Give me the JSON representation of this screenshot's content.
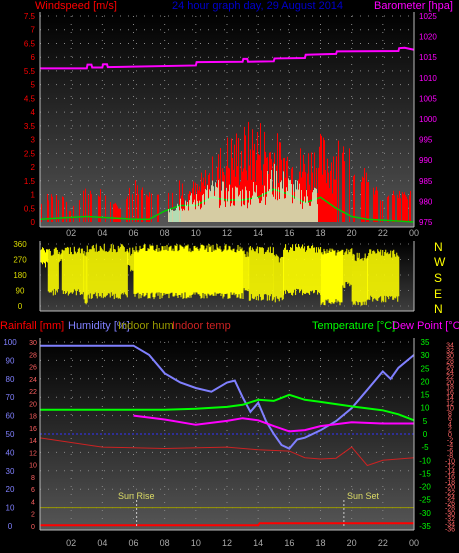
{
  "header": {
    "left_label": "Windspeed [m/s]",
    "center_title": "24 hour graph day, 29 August 2014",
    "right_label": "Barometer [hpa]"
  },
  "bottom_header": {
    "rainfall": "Rainfall [mm]",
    "humidity": "Humidity [%]",
    "indoor_hum": "Indoor hum",
    "indoor_temp": "Indoor temp",
    "temperature": "Temperature [°C]",
    "dew_point": "Dew Point [°C]"
  },
  "annotations": {
    "sunrise": "Sun Rise",
    "sunset": "Sun Set"
  },
  "compass": [
    "N",
    "W",
    "S",
    "E",
    "N"
  ],
  "colors": {
    "windspeed": "#ff0000",
    "gust": "#ff0000",
    "wind_avg": "#00cc00",
    "barometer": "#ff00ff",
    "direction": "#ffff00",
    "humidity": "#8080ff",
    "temperature": "#00ff00",
    "dew_point": "#ff00ff",
    "indoor_temp": "#cc2222",
    "indoor_hum": "#999900",
    "rainfall": "#ff0000",
    "title": "#0000cc"
  },
  "chart_data": [
    {
      "type": "bar",
      "name": "wind_barometer",
      "x_ticks": [
        "02",
        "04",
        "06",
        "08",
        "10",
        "12",
        "14",
        "16",
        "18",
        "20",
        "22",
        "00"
      ],
      "y_left_ticks": [
        "0",
        "0.5",
        "1",
        "1.5",
        "2",
        "2.5",
        "3",
        "3.5",
        "4",
        "4.5",
        "5",
        "5.5",
        "6",
        "6.5",
        "7",
        "7.5"
      ],
      "y_right_ticks": [
        "975",
        "980",
        "985",
        "990",
        "995",
        "1000",
        "1005",
        "1010",
        "1015",
        "1020",
        "1025"
      ],
      "ylim_left": [
        0,
        7.5
      ],
      "ylim_right": [
        975,
        1025
      ],
      "grid": true,
      "windspeed_peaks": [
        [
          0,
          0.8
        ],
        [
          1,
          1.1
        ],
        [
          2,
          0.4
        ],
        [
          3,
          1.2
        ],
        [
          4,
          1.0
        ],
        [
          5,
          0.5
        ],
        [
          6,
          1.3
        ],
        [
          7,
          1.0
        ],
        [
          8,
          0.9
        ],
        [
          9,
          1.6
        ],
        [
          10,
          1.4
        ],
        [
          11,
          2.2
        ],
        [
          12,
          3.0
        ],
        [
          13,
          3.3
        ],
        [
          14,
          3.6
        ],
        [
          15,
          3.1
        ],
        [
          16,
          2.7
        ],
        [
          17,
          2.6
        ],
        [
          18,
          3.0
        ],
        [
          19,
          2.9
        ],
        [
          20,
          2.1
        ],
        [
          21,
          1.6
        ],
        [
          22,
          0.7
        ],
        [
          23,
          1.1
        ],
        [
          24,
          0.9
        ]
      ],
      "wind_avg_peaks": [
        [
          0,
          0.1
        ],
        [
          3,
          0.2
        ],
        [
          6,
          0.1
        ],
        [
          7,
          0.1
        ],
        [
          8,
          0.4
        ],
        [
          9,
          0.6
        ],
        [
          10,
          0.6
        ],
        [
          11,
          0.9
        ],
        [
          12,
          0.8
        ],
        [
          13,
          0.8
        ],
        [
          14,
          0.9
        ],
        [
          15,
          1.2
        ],
        [
          16,
          1.0
        ],
        [
          17,
          0.7
        ],
        [
          18,
          0.9
        ],
        [
          19,
          0.5
        ],
        [
          20,
          0.2
        ],
        [
          21,
          0.1
        ],
        [
          24,
          0.0
        ]
      ],
      "barometer": [
        [
          0,
          1012.3
        ],
        [
          3,
          1012.3
        ],
        [
          3.05,
          1013.2
        ],
        [
          3.3,
          1013.2
        ],
        [
          3.35,
          1012.5
        ],
        [
          4.0,
          1012.5
        ],
        [
          4.05,
          1013.3
        ],
        [
          4.3,
          1013.3
        ],
        [
          4.35,
          1012.6
        ],
        [
          10.0,
          1013.0
        ],
        [
          10.05,
          1013.8
        ],
        [
          13.0,
          1013.9
        ],
        [
          13.05,
          1014.6
        ],
        [
          13.3,
          1014.6
        ],
        [
          13.35,
          1013.9
        ],
        [
          15.0,
          1014.0
        ],
        [
          15.05,
          1014.7
        ],
        [
          17.0,
          1014.8
        ],
        [
          17.05,
          1015.6
        ],
        [
          19.0,
          1015.8
        ],
        [
          19.05,
          1016.4
        ],
        [
          23.0,
          1016.5
        ],
        [
          23.05,
          1017.2
        ],
        [
          23.4,
          1017.3
        ],
        [
          24,
          1016.8
        ]
      ]
    },
    {
      "type": "bar",
      "name": "wind_direction",
      "y_ticks": [
        "0",
        "90",
        "180",
        "270",
        "360"
      ],
      "ylim": [
        0,
        360
      ],
      "direction_bands": [
        [
          0,
          0.5,
          220,
          350
        ],
        [
          0.5,
          1.2,
          60,
          340
        ],
        [
          1.2,
          1.4,
          250,
          330
        ],
        [
          1.4,
          2.8,
          60,
          350
        ],
        [
          2.8,
          3.0,
          0,
          320
        ],
        [
          3.0,
          5.6,
          40,
          360
        ],
        [
          5.6,
          6.0,
          200,
          340
        ],
        [
          6.0,
          13.0,
          40,
          360
        ],
        [
          13.0,
          13.4,
          80,
          330
        ],
        [
          13.4,
          15.0,
          30,
          350
        ],
        [
          15.0,
          15.6,
          20,
          300
        ],
        [
          15.6,
          18.0,
          60,
          360
        ],
        [
          18.0,
          19.4,
          0,
          340
        ],
        [
          19.4,
          20.0,
          100,
          340
        ],
        [
          20.0,
          21.0,
          0,
          310
        ],
        [
          21.0,
          23.0,
          20,
          330
        ]
      ]
    },
    {
      "type": "line",
      "name": "temperature_humidity",
      "x_ticks": [
        "02",
        "04",
        "06",
        "08",
        "10",
        "12",
        "14",
        "16",
        "18",
        "20",
        "22",
        "00"
      ],
      "y_humidity_ticks": [
        "0",
        "10",
        "20",
        "30",
        "40",
        "50",
        "60",
        "70",
        "80",
        "90",
        "100"
      ],
      "y_rain_ticks": [
        "0",
        "2",
        "4",
        "6",
        "8",
        "10",
        "12",
        "14",
        "16",
        "18",
        "20",
        "22",
        "24",
        "26",
        "28",
        "30"
      ],
      "y_temp_ticks": [
        "-35",
        "-30",
        "-25",
        "-20",
        "-15",
        "-10",
        "-5",
        "0",
        "5",
        "10",
        "15",
        "20",
        "25",
        "30",
        "35"
      ],
      "y_dew_ticks": [
        "-36",
        "-34",
        "-32",
        "-30",
        "-28",
        "-26",
        "-24",
        "-22",
        "-20",
        "-18",
        "-16",
        "-14",
        "-12",
        "-10",
        "-8",
        "-6",
        "-4",
        "-2",
        "0",
        "2",
        "4",
        "6",
        "8",
        "10",
        "12",
        "14",
        "16",
        "18",
        "20",
        "22",
        "24",
        "26",
        "28",
        "30",
        "32",
        "34"
      ],
      "ylim_humidity": [
        0,
        100
      ],
      "ylim_temp": [
        -35,
        35
      ],
      "grid": true,
      "humidity": [
        [
          0,
          98
        ],
        [
          6,
          98
        ],
        [
          7,
          93
        ],
        [
          8,
          83
        ],
        [
          9,
          78
        ],
        [
          10,
          75
        ],
        [
          11,
          73
        ],
        [
          12,
          78
        ],
        [
          12.5,
          79
        ],
        [
          13,
          70
        ],
        [
          13.5,
          62
        ],
        [
          14,
          67
        ],
        [
          14.5,
          57
        ],
        [
          15,
          50
        ],
        [
          15.5,
          44
        ],
        [
          16,
          42
        ],
        [
          16.5,
          47
        ],
        [
          17,
          48
        ],
        [
          18,
          52
        ],
        [
          19,
          57
        ],
        [
          20,
          64
        ],
        [
          21,
          74
        ],
        [
          22,
          84
        ],
        [
          22.5,
          80
        ],
        [
          23,
          86
        ],
        [
          24,
          93
        ]
      ],
      "temperature": [
        [
          0,
          9.2
        ],
        [
          6,
          9.2
        ],
        [
          8,
          9.2
        ],
        [
          10,
          9.6
        ],
        [
          12,
          10.3
        ],
        [
          13,
          11.1
        ],
        [
          14,
          13.0
        ],
        [
          15,
          12.6
        ],
        [
          16,
          14.9
        ],
        [
          17,
          13.0
        ],
        [
          18,
          12.2
        ],
        [
          20,
          10.5
        ],
        [
          22,
          9.0
        ],
        [
          23,
          7.5
        ],
        [
          24,
          5.2
        ]
      ],
      "dew_point": [
        [
          6,
          7.0
        ],
        [
          8,
          5.5
        ],
        [
          10,
          3.5
        ],
        [
          12,
          5.0
        ],
        [
          13,
          6.0
        ],
        [
          14,
          5.2
        ],
        [
          15,
          3.0
        ],
        [
          16,
          1.0
        ],
        [
          17,
          1.5
        ],
        [
          18,
          3.0
        ],
        [
          20,
          4.5
        ],
        [
          22,
          4.0
        ],
        [
          24,
          4.0
        ]
      ],
      "indoor_temp": [
        [
          0,
          -1.5
        ],
        [
          4,
          -5.0
        ],
        [
          8,
          -5.5
        ],
        [
          12,
          -5.0
        ],
        [
          14,
          -6.0
        ],
        [
          16,
          -6.5
        ],
        [
          17,
          -9.0
        ],
        [
          18,
          -9.5
        ],
        [
          19,
          -9.2
        ],
        [
          20,
          -5.0
        ],
        [
          21,
          -12.0
        ],
        [
          22,
          -10.0
        ],
        [
          24,
          -9.0
        ]
      ],
      "indoor_hum": [
        [
          0,
          10
        ],
        [
          24,
          10
        ]
      ],
      "rainfall": [
        [
          0,
          0.4
        ],
        [
          14,
          0.4
        ],
        [
          14.1,
          1.4
        ],
        [
          24,
          1.4
        ]
      ],
      "sunrise_hour": 6.2,
      "sunset_hour": 19.5
    }
  ]
}
